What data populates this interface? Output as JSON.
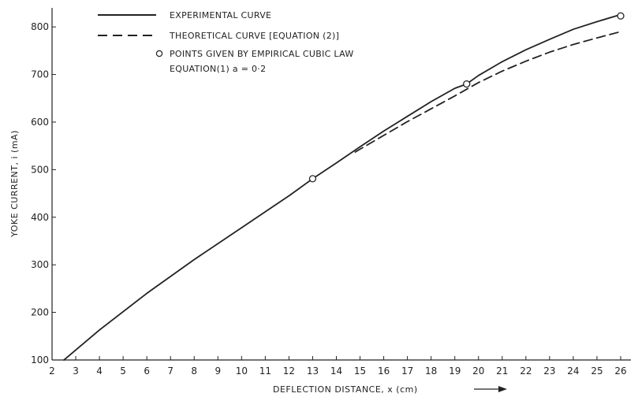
{
  "chart_data": {
    "type": "line",
    "title": "",
    "xlabel": "DEFLECTION DISTANCE, x (cm)",
    "ylabel": "YOKE CURRENT, i (mA)",
    "xlim": [
      2,
      26
    ],
    "ylim": [
      100,
      850
    ],
    "x_ticks": [
      2,
      3,
      4,
      5,
      6,
      7,
      8,
      9,
      10,
      11,
      12,
      13,
      14,
      15,
      16,
      17,
      18,
      19,
      20,
      21,
      22,
      23,
      24,
      25,
      26
    ],
    "y_ticks": [
      100,
      200,
      300,
      400,
      500,
      600,
      700,
      800
    ],
    "grid": false,
    "legend_position": "top-left",
    "series": [
      {
        "name": "EXPERIMENTAL CURVE",
        "style": "solid",
        "color": "#222222",
        "x": [
          2.5,
          4,
          6,
          8,
          10,
          12,
          13,
          14,
          15,
          16,
          17,
          18,
          19,
          19.5,
          20,
          21,
          22,
          23,
          24,
          25,
          26
        ],
        "y": [
          100,
          163,
          240,
          311,
          378,
          445,
          481,
          514,
          548,
          581,
          612,
          643,
          671,
          680,
          698,
          727,
          752,
          774,
          795,
          811,
          826
        ]
      },
      {
        "name": "THEORETICAL CURVE [EQUATION (2)]",
        "style": "dashed",
        "color": "#222222",
        "x": [
          14.8,
          15,
          16,
          17,
          18,
          19,
          20,
          21,
          22,
          23,
          24,
          25,
          26
        ],
        "y": [
          537,
          543,
          572,
          601,
          628,
          655,
          683,
          707,
          728,
          747,
          763,
          777,
          790
        ]
      },
      {
        "name": "POINTS GIVEN BY EMPIRICAL CUBIC LAW",
        "style": "markers",
        "color": "#222222",
        "x": [
          13,
          19.5,
          26
        ],
        "y": [
          481,
          680,
          823
        ]
      }
    ],
    "legend_extra": "EQUATION(1) a = 0·2"
  }
}
